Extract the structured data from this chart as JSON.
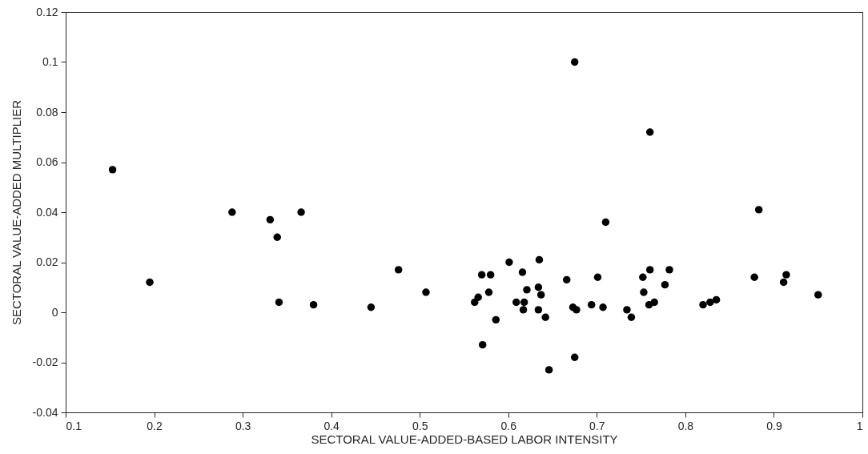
{
  "chart_data": {
    "type": "scatter",
    "xlabel": "SECTORAL VALUE-ADDED-BASED LABOR INTENSITY",
    "ylabel": "SECTORAL VALUE-ADDED MULTIPLIER",
    "xlim": [
      0.1,
      1
    ],
    "xticks": [
      0.1,
      0.2,
      0.3,
      0.4,
      0.5,
      0.6,
      0.7,
      0.8,
      0.9,
      1
    ],
    "ylim": [
      -0.04,
      0.12
    ],
    "yticks": [
      -0.04,
      -0.02,
      0,
      0.02,
      0.04,
      0.06,
      0.08,
      0.1,
      0.12
    ],
    "grid": false,
    "marker": "circle",
    "series": [
      {
        "color": "#000000",
        "x": [
          0.153,
          0.195,
          0.288,
          0.331,
          0.366,
          0.339,
          0.341,
          0.38,
          0.445,
          0.476,
          0.507,
          0.57,
          0.58,
          0.601,
          0.635,
          0.616,
          0.621,
          0.634,
          0.637,
          0.578,
          0.566,
          0.562,
          0.609,
          0.618,
          0.617,
          0.634,
          0.642,
          0.586,
          0.571,
          0.646,
          0.675,
          0.666,
          0.701,
          0.673,
          0.677,
          0.694,
          0.707,
          0.734,
          0.739,
          0.752,
          0.76,
          0.753,
          0.759,
          0.765,
          0.777,
          0.782,
          0.71,
          0.675,
          0.76,
          0.883,
          0.82,
          0.828,
          0.835,
          0.878,
          0.911,
          0.914,
          0.95
        ],
        "values": [
          0.057,
          0.012,
          0.04,
          0.037,
          0.04,
          0.03,
          0.004,
          0.003,
          0.002,
          0.017,
          0.008,
          0.015,
          0.015,
          0.02,
          0.021,
          0.016,
          0.009,
          0.01,
          0.007,
          0.008,
          0.006,
          0.004,
          0.004,
          0.004,
          0.001,
          0.001,
          -0.002,
          -0.003,
          -0.013,
          -0.023,
          -0.018,
          0.013,
          0.014,
          0.002,
          0.001,
          0.003,
          0.002,
          0.001,
          -0.002,
          0.014,
          0.017,
          0.008,
          0.003,
          0.004,
          0.011,
          0.017,
          0.036,
          0.1,
          0.072,
          0.041,
          0.003,
          0.004,
          0.005,
          0.014,
          0.012,
          0.015,
          0.007
        ]
      }
    ]
  }
}
